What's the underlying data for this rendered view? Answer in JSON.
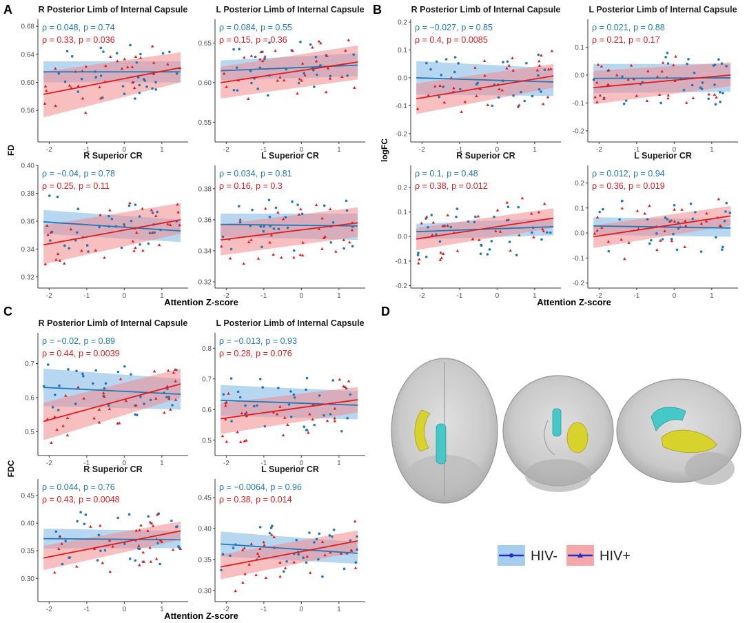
{
  "colors": {
    "neg": "#1f77b4",
    "neg_band": "#87bde8",
    "pos": "#e31a1c",
    "pos_band": "#f28a8e",
    "axis": "#333333",
    "brain": "#c8c8c8",
    "tract_cyan": "#45c8c8",
    "tract_yellow": "#d8d22c"
  },
  "panel_letters": {
    "a": "A",
    "b": "B",
    "c": "C",
    "d": "D"
  },
  "legend": {
    "neg_label": "HIV-",
    "pos_label": "HIV+"
  },
  "brain_views": [
    "axial-top",
    "coronal-front",
    "sagittal-side"
  ],
  "chart_data": [
    {
      "id": "A",
      "type": "scatter",
      "ylabel": "FD",
      "xlabel": "Attention Z-score",
      "xticks": [
        -2,
        -1,
        0,
        1
      ],
      "xlim": [
        -2.3,
        1.7
      ],
      "subplots": [
        {
          "title": "R Posterior Limb of Internal Capsule",
          "ylim": [
            0.515,
            0.69
          ],
          "yticks": [
            "0.56",
            "0.60",
            "0.64",
            "0.68"
          ],
          "neg": {
            "rho_text": "ρ = 0.048,",
            "p_text": "p = 0.74",
            "fit": [
              0.615,
              0.615
            ],
            "band": [
              [
                0.6,
                0.63
              ],
              [
                0.6,
                0.63
              ]
            ]
          },
          "pos": {
            "rho_text": "ρ = 0.33,",
            "p_text": "p = 0.036",
            "fit": [
              0.583,
              0.621
            ],
            "band": [
              [
                0.55,
                0.615
              ],
              [
                0.6,
                0.643
              ]
            ]
          }
        },
        {
          "title": "L Posterior Limb of Internal Capsule",
          "ylim": [
            0.525,
            0.68
          ],
          "yticks": [
            "0.55",
            "0.60",
            "0.65"
          ],
          "neg": {
            "rho_text": "ρ = 0.084,",
            "p_text": "p = 0.55",
            "fit": [
              0.615,
              0.622
            ],
            "band": [
              [
                0.603,
                0.628
              ],
              [
                0.608,
                0.637
              ]
            ]
          },
          "pos": {
            "rho_text": "ρ = 0.15,",
            "p_text": "p = 0.36",
            "fit": [
              0.6,
              0.626
            ],
            "band": [
              [
                0.58,
                0.62
              ],
              [
                0.604,
                0.647
              ]
            ]
          }
        },
        {
          "title": "R Superior CR",
          "ylim": [
            0.312,
            0.4
          ],
          "yticks": [
            "0.32",
            "0.34",
            "0.36",
            "0.38",
            "0.40"
          ],
          "neg": {
            "rho_text": "ρ = −0.04,",
            "p_text": "p = 0.78",
            "fit": [
              0.3595,
              0.353
            ],
            "band": [
              [
                0.351,
                0.368
              ],
              [
                0.345,
                0.361
              ]
            ]
          },
          "pos": {
            "rho_text": "ρ = 0.25,",
            "p_text": "p = 0.11",
            "fit": [
              0.343,
              0.361
            ],
            "band": [
              [
                0.329,
                0.357
              ],
              [
                0.351,
                0.373
              ]
            ]
          }
        },
        {
          "title": "L Superior CR",
          "ylim": [
            0.316,
            0.395
          ],
          "yticks": [
            "0.32",
            "0.34",
            "0.36",
            "0.38"
          ],
          "neg": {
            "rho_text": "ρ = 0.034,",
            "p_text": "p = 0.81",
            "fit": [
              0.357,
              0.356
            ],
            "band": [
              [
                0.349,
                0.364
              ],
              [
                0.347,
                0.364
              ]
            ]
          },
          "pos": {
            "rho_text": "ρ = 0.16,",
            "p_text": "p = 0.3",
            "fit": [
              0.347,
              0.358
            ],
            "band": [
              [
                0.337,
                0.357
              ],
              [
                0.349,
                0.368
              ]
            ]
          }
        }
      ]
    },
    {
      "id": "B",
      "type": "scatter",
      "ylabel": "logFC",
      "xlabel": "Attention Z-score",
      "xticks": [
        -2,
        -1,
        0,
        1
      ],
      "xlim": [
        -2.3,
        1.7
      ],
      "subplots": [
        {
          "title": "R Posterior Limb of Internal Capsule",
          "ylim": [
            -0.23,
            0.21
          ],
          "yticks": [
            "-0.2",
            "-0.1",
            "0.0",
            "0.1",
            "0.2"
          ],
          "neg": {
            "rho_text": "ρ = −0.027,",
            "p_text": "p = 0.85",
            "fit": [
              0.0,
              -0.015
            ],
            "band": [
              [
                -0.06,
                0.06
              ],
              [
                -0.065,
                0.035
              ]
            ]
          },
          "pos": {
            "rho_text": "ρ = 0.4,",
            "p_text": "p = 0.0085",
            "fit": [
              -0.075,
              0.007
            ],
            "band": [
              [
                -0.13,
                -0.02
              ],
              [
                -0.035,
                0.05
              ]
            ]
          }
        },
        {
          "title": "L Posterior Limb of Internal Capsule",
          "ylim": [
            -0.24,
            0.2
          ],
          "yticks": [
            "-0.2",
            "-0.1",
            "0.0",
            "0.1"
          ],
          "neg": {
            "rho_text": "ρ = 0.021,",
            "p_text": "p = 0.88",
            "fit": [
              -0.012,
              -0.01
            ],
            "band": [
              [
                -0.065,
                0.04
              ],
              [
                -0.06,
                0.04
              ]
            ]
          },
          "pos": {
            "rho_text": "ρ = 0.21,",
            "p_text": "p = 0.17",
            "fit": [
              -0.045,
              0.0
            ],
            "band": [
              [
                -0.105,
                0.015
              ],
              [
                -0.04,
                0.045
              ]
            ]
          }
        },
        {
          "title": "R Superior CR",
          "ylim": [
            -0.21,
            0.29
          ],
          "yticks": [
            "-0.2",
            "-0.1",
            "0.0",
            "0.1",
            "0.2"
          ],
          "neg": {
            "rho_text": "ρ = 0.1,",
            "p_text": "p = 0.48",
            "fit": [
              0.02,
              0.04
            ],
            "band": [
              [
                -0.012,
                0.052
              ],
              [
                0.005,
                0.075
              ]
            ]
          },
          "pos": {
            "rho_text": "ρ = 0.38,",
            "p_text": "p = 0.012",
            "fit": [
              -0.01,
              0.075
            ],
            "band": [
              [
                -0.055,
                0.035
              ],
              [
                0.035,
                0.115
              ]
            ]
          }
        },
        {
          "title": "L Superior CR",
          "ylim": [
            -0.22,
            0.27
          ],
          "yticks": [
            "-0.2",
            "-0.1",
            "0.0",
            "0.1",
            "0.2"
          ],
          "neg": {
            "rho_text": "ρ = 0.012,",
            "p_text": "p = 0.94",
            "fit": [
              0.028,
              0.02
            ],
            "band": [
              [
                -0.008,
                0.063
              ],
              [
                -0.015,
                0.055
              ]
            ]
          },
          "pos": {
            "rho_text": "ρ = 0.36,",
            "p_text": "p = 0.019",
            "fit": [
              -0.015,
              0.068
            ],
            "band": [
              [
                -0.06,
                0.03
              ],
              [
                0.03,
                0.108
              ]
            ]
          }
        }
      ]
    },
    {
      "id": "C",
      "type": "scatter",
      "ylabel": "FDC",
      "xlabel": "Attention Z-score",
      "xticks": [
        -2,
        -1,
        0,
        1
      ],
      "xlim": [
        -2.3,
        1.7
      ],
      "subplots": [
        {
          "title": "R Posterior Limb of Internal Capsule",
          "ylim": [
            0.43,
            0.79
          ],
          "yticks": [
            "0.5",
            "0.6",
            "0.7"
          ],
          "neg": {
            "rho_text": "ρ = −0.02,",
            "p_text": "p = 0.89",
            "fit": [
              0.63,
              0.61
            ],
            "band": [
              [
                0.575,
                0.685
              ],
              [
                0.565,
                0.655
              ]
            ]
          },
          "pos": {
            "rho_text": "ρ = 0.44,",
            "p_text": "p = 0.0039",
            "fit": [
              0.53,
              0.64
            ],
            "band": [
              [
                0.475,
                0.585
              ],
              [
                0.6,
                0.685
              ]
            ]
          }
        },
        {
          "title": "L Posterior Limb of Internal Capsule",
          "ylim": [
            0.45,
            0.85
          ],
          "yticks": [
            "0.5",
            "0.6",
            "0.7",
            "0.8"
          ],
          "neg": {
            "rho_text": "ρ = −0.013,",
            "p_text": "p = 0.93",
            "fit": [
              0.63,
              0.614
            ],
            "band": [
              [
                0.58,
                0.68
              ],
              [
                0.568,
                0.66
              ]
            ]
          },
          "pos": {
            "rho_text": "ρ = 0.28,",
            "p_text": "p = 0.076",
            "fit": [
              0.57,
              0.632
            ],
            "band": [
              [
                0.52,
                0.62
              ],
              [
                0.59,
                0.674
              ]
            ]
          }
        },
        {
          "title": "R Superior CR",
          "ylim": [
            0.258,
            0.48
          ],
          "yticks": [
            "0.30",
            "0.35",
            "0.40",
            "0.45"
          ],
          "neg": {
            "rho_text": "ρ = 0.044,",
            "p_text": "p = 0.76",
            "fit": [
              0.372,
              0.37
            ],
            "band": [
              [
                0.354,
                0.39
              ],
              [
                0.355,
                0.386
              ]
            ]
          },
          "pos": {
            "rho_text": "ρ = 0.43,",
            "p_text": "p = 0.0048",
            "fit": [
              0.337,
              0.386
            ],
            "band": [
              [
                0.315,
                0.359
              ],
              [
                0.37,
                0.403
              ]
            ]
          }
        },
        {
          "title": "L Superior CR",
          "ylim": [
            0.282,
            0.48
          ],
          "yticks": [
            "0.30",
            "0.35",
            "0.40",
            "0.45"
          ],
          "neg": {
            "rho_text": "ρ = −0.0064,",
            "p_text": "p = 0.96",
            "fit": [
              0.375,
              0.36
            ],
            "band": [
              [
                0.355,
                0.395
              ],
              [
                0.343,
                0.378
              ]
            ]
          },
          "pos": {
            "rho_text": "ρ = 0.38,",
            "p_text": "p = 0.014",
            "fit": [
              0.338,
              0.38
            ],
            "band": [
              [
                0.318,
                0.358
              ],
              [
                0.363,
                0.397
              ]
            ]
          }
        }
      ]
    }
  ]
}
